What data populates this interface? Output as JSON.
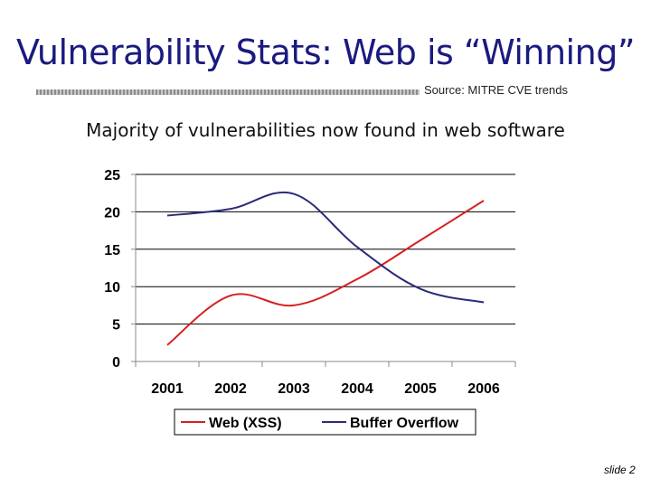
{
  "slide": {
    "title": "Vulnerability Stats: Web is “Winning”",
    "source": "Source:  MITRE CVE trends",
    "subtitle": "Majority of vulnerabilities now found in web software",
    "slide_number": "slide 2"
  },
  "chart_data": {
    "type": "line",
    "title": "",
    "xlabel": "",
    "ylabel": "",
    "categories": [
      "2001",
      "2002",
      "2003",
      "2004",
      "2005",
      "2006"
    ],
    "ylim": [
      0,
      25
    ],
    "yticks": [
      0,
      5,
      10,
      15,
      20,
      25
    ],
    "grid": true,
    "legend_position": "bottom",
    "series": [
      {
        "name": "Web (XSS)",
        "color": "#d62020",
        "values": [
          2.2,
          8.8,
          7.5,
          11.0,
          16.2,
          21.5
        ]
      },
      {
        "name": "Buffer Overflow",
        "color": "#2b2b7a",
        "values": [
          19.5,
          20.4,
          22.4,
          15.3,
          9.7,
          7.9
        ]
      }
    ]
  }
}
